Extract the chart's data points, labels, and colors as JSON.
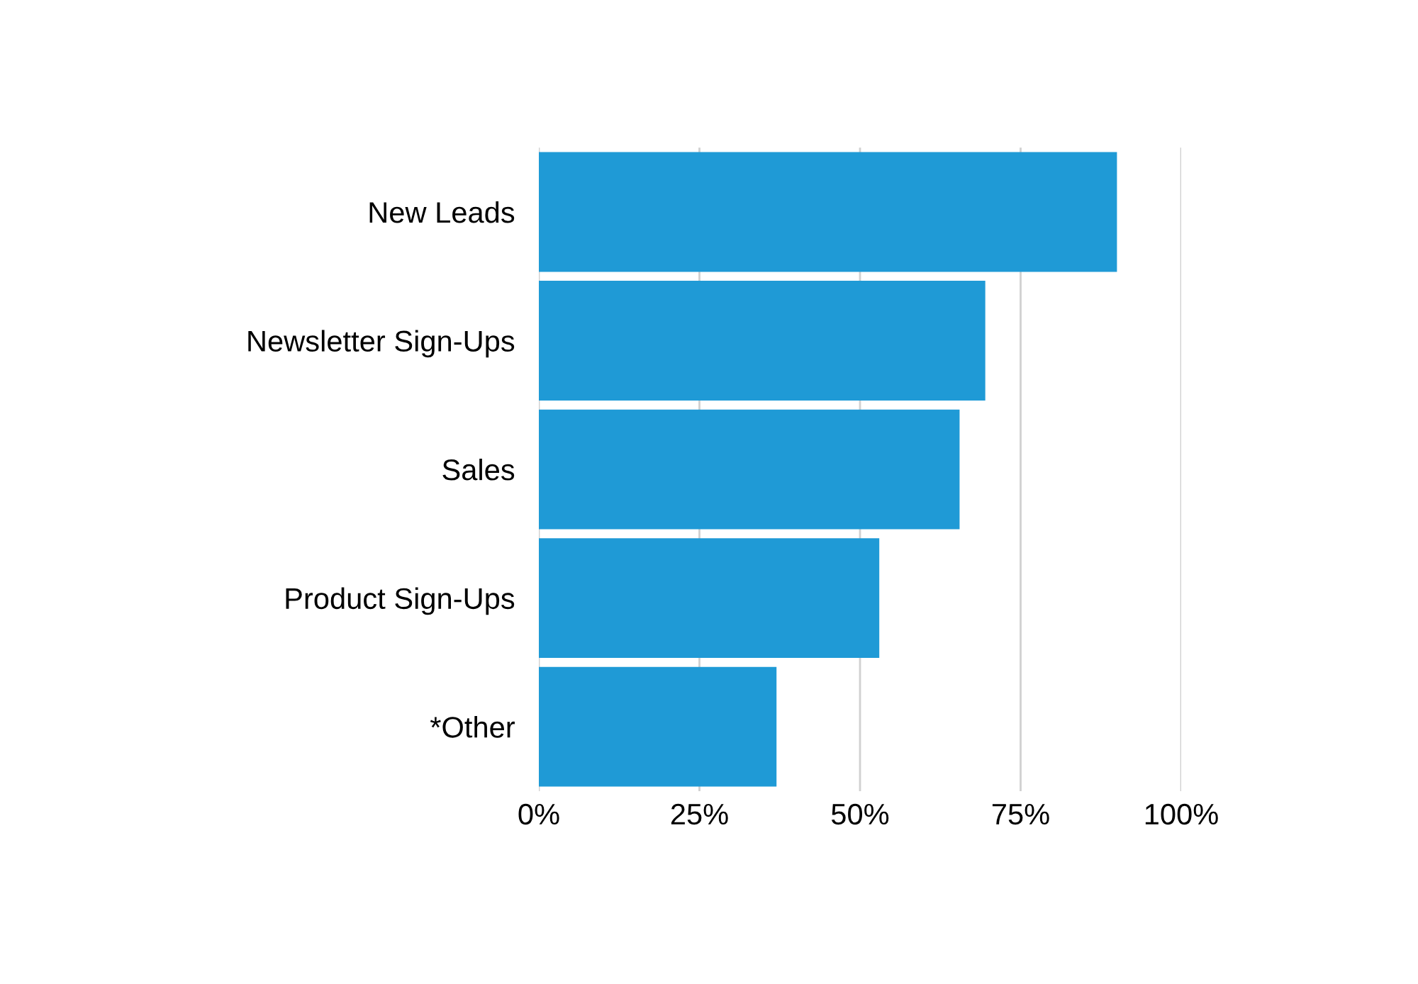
{
  "chart_data": {
    "type": "bar",
    "orientation": "horizontal",
    "categories": [
      "New Leads",
      "Newsletter Sign-Ups",
      "Sales",
      "Product Sign-Ups",
      "*Other"
    ],
    "values": [
      90,
      69.5,
      65.5,
      53,
      37
    ],
    "color": "#1f9ad6",
    "xlim": [
      0,
      100
    ],
    "xticks": [
      {
        "value": 0,
        "label": "0%"
      },
      {
        "value": 25,
        "label": "25%"
      },
      {
        "value": 50,
        "label": "50%"
      },
      {
        "value": 75,
        "label": "75%"
      },
      {
        "value": 100,
        "label": "100%"
      }
    ],
    "grid": "x",
    "legend": false
  }
}
